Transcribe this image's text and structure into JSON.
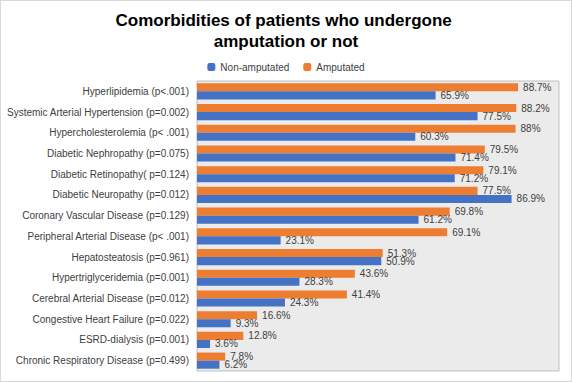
{
  "chart_data": {
    "type": "bar",
    "title": "Comorbidities of patients who undergone amputation or not",
    "orientation": "horizontal",
    "categories": [
      "Hyperlipidemia (p<.001)",
      "Systemic Arterial Hypertension (p=0.002)",
      "Hypercholesterolemia (p< .001)",
      "Diabetic Nephropathy (p=0.075)",
      "Diabetic Retinopathy( p=0.124)",
      "Diabetic Neuropathy (p=0.012)",
      "Coronary Vascular Disease (p=0.129)",
      "Peripheral Arterial Disease (p< .001)",
      "Hepatosteatosis (p=0.961)",
      "Hypertriglyceridemia (p=0.001)",
      "Cerebral Arterial Disease (p=0.012)",
      "Congestive Heart Failure (p=0.022)",
      "ESRD-dialysis (p=0.001)",
      "Chronic Respiratory Disease (p=0.499)"
    ],
    "series": [
      {
        "name": "Non-amputated",
        "color": "#4472c4",
        "values": [
          65.9,
          77.5,
          60.3,
          71.4,
          71.2,
          86.9,
          61.2,
          23.1,
          50.9,
          28.3,
          24.3,
          9.3,
          3.6,
          6.2
        ],
        "value_labels": [
          "65.9%",
          "77.5%",
          "60.3%",
          "71.4%",
          "71.2%",
          "86.9%",
          "61.2%",
          "23.1%",
          "50.9%",
          "28.3%",
          "24.3%",
          "9.3%",
          "3.6%",
          "6.2%"
        ]
      },
      {
        "name": "Amputated",
        "color": "#ed7d31",
        "values": [
          88.7,
          88.2,
          88,
          79.5,
          79.1,
          77.5,
          69.8,
          69.1,
          51.3,
          43.6,
          41.4,
          16.6,
          12.8,
          7.8
        ],
        "value_labels": [
          "88.7%",
          "88.2%",
          "88%",
          "79.5%",
          "79.1%",
          "77.5%",
          "69.8%",
          "69.1%",
          "51.3%",
          "43.6%",
          "41.4%",
          "16.6%",
          "12.8%",
          "7.8%"
        ]
      }
    ],
    "xlim": [
      0,
      100
    ],
    "data_labels": true,
    "legend": "top",
    "grid": false,
    "tick_labels": "y"
  }
}
